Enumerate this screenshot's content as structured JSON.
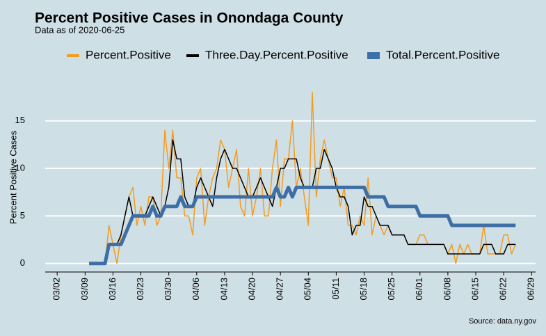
{
  "chart_data": {
    "type": "line",
    "title": "Percent Positive Cases in Onondaga County",
    "subtitle": "Data as of 2020-06-25",
    "y_label": "Percent Positive Cases",
    "source": "Source: data.ny.gov",
    "legend": "top",
    "grid": true,
    "xlim": [
      "02/28",
      "06/30"
    ],
    "xticks": [
      "03/02",
      "03/09",
      "03/16",
      "03/23",
      "03/30",
      "04/06",
      "04/13",
      "04/20",
      "04/27",
      "05/04",
      "05/11",
      "05/18",
      "05/25",
      "06/01",
      "06/08",
      "06/15",
      "06/22",
      "06/29"
    ],
    "ylim": [
      -0.9,
      18.2
    ],
    "yticks": [
      0,
      5,
      10,
      15
    ],
    "x": [
      "03/10",
      "03/11",
      "03/12",
      "03/13",
      "03/14",
      "03/15",
      "03/16",
      "03/17",
      "03/18",
      "03/19",
      "03/20",
      "03/21",
      "03/22",
      "03/23",
      "03/24",
      "03/25",
      "03/26",
      "03/27",
      "03/28",
      "03/29",
      "03/30",
      "03/31",
      "04/01",
      "04/02",
      "04/03",
      "04/04",
      "04/05",
      "04/06",
      "04/07",
      "04/08",
      "04/09",
      "04/10",
      "04/11",
      "04/12",
      "04/13",
      "04/14",
      "04/15",
      "04/16",
      "04/17",
      "04/18",
      "04/19",
      "04/20",
      "04/21",
      "04/22",
      "04/23",
      "04/24",
      "04/25",
      "04/26",
      "04/27",
      "04/28",
      "04/29",
      "04/30",
      "05/01",
      "05/02",
      "05/03",
      "05/04",
      "05/05",
      "05/06",
      "05/07",
      "05/08",
      "05/09",
      "05/10",
      "05/11",
      "05/12",
      "05/13",
      "05/14",
      "05/15",
      "05/16",
      "05/17",
      "05/18",
      "05/19",
      "05/20",
      "05/21",
      "05/22",
      "05/23",
      "05/24",
      "05/25",
      "05/26",
      "05/27",
      "05/28",
      "05/29",
      "05/30",
      "05/31",
      "06/01",
      "06/02",
      "06/03",
      "06/04",
      "06/05",
      "06/06",
      "06/07",
      "06/08",
      "06/09",
      "06/10",
      "06/11",
      "06/12",
      "06/13",
      "06/14",
      "06/15",
      "06/16",
      "06/17",
      "06/18",
      "06/19",
      "06/20",
      "06/21",
      "06/22",
      "06/23",
      "06/24",
      "06/25"
    ],
    "series": [
      {
        "name": "Percent.Positive",
        "color": "#f39c1f",
        "width": 1.5,
        "values": [
          null,
          null,
          null,
          null,
          0,
          4,
          2,
          0,
          3,
          5,
          7,
          8,
          4,
          6,
          4,
          7,
          7,
          4,
          5,
          14,
          10,
          14,
          9,
          9,
          5,
          5,
          3,
          9,
          10,
          4,
          7,
          9,
          10,
          13,
          12,
          8,
          10,
          12,
          6,
          5,
          10,
          5,
          7,
          10,
          5,
          5,
          10,
          13,
          6,
          11,
          11,
          15,
          8,
          10,
          7,
          4,
          18,
          7,
          11,
          13,
          11,
          9,
          9,
          6,
          8,
          4,
          4,
          3,
          5,
          4,
          9,
          3,
          5,
          4,
          3,
          4,
          3,
          3,
          3,
          3,
          2,
          2,
          2,
          3,
          3,
          2,
          2,
          2,
          2,
          2,
          1,
          2,
          0,
          2,
          1,
          2,
          1,
          1,
          1,
          4,
          1,
          1,
          1,
          1,
          3,
          3,
          1,
          2
        ]
      },
      {
        "name": "Three.Day.Percent.Positive",
        "color": "#000000",
        "width": 1.5,
        "values": [
          null,
          null,
          null,
          null,
          null,
          2,
          2,
          2,
          3,
          5,
          7,
          5,
          5,
          5,
          5,
          6,
          7,
          6,
          5,
          6,
          8,
          13,
          11,
          11,
          7,
          6,
          6,
          8,
          9,
          8,
          7,
          6,
          9,
          11,
          12,
          11,
          10,
          10,
          9,
          8,
          7,
          7,
          8,
          9,
          8,
          7,
          6,
          8,
          10,
          10,
          11,
          11,
          11,
          9,
          8,
          8,
          8,
          10,
          10,
          12,
          11,
          10,
          8,
          7,
          7,
          6,
          3,
          4,
          4,
          7,
          6,
          6,
          5,
          4,
          4,
          4,
          3,
          3,
          3,
          3,
          2,
          2,
          2,
          2,
          2,
          2,
          2,
          2,
          2,
          2,
          1,
          1,
          1,
          1,
          1,
          1,
          1,
          1,
          1,
          2,
          2,
          2,
          1,
          1,
          1,
          2,
          2,
          2
        ]
      },
      {
        "name": "Total.Percent.Positive",
        "color": "#3e6ea6",
        "width": 5,
        "values": [
          0,
          0,
          0,
          0,
          0,
          2,
          2,
          2,
          2,
          3,
          4,
          5,
          5,
          5,
          5,
          5,
          6,
          5,
          5,
          6,
          6,
          6,
          6,
          7,
          6,
          6,
          6,
          7,
          7,
          7,
          7,
          7,
          7,
          7,
          7,
          7,
          7,
          7,
          7,
          7,
          7,
          7,
          7,
          7,
          7,
          7,
          7,
          8,
          7,
          7,
          8,
          7,
          8,
          8,
          8,
          8,
          8,
          8,
          8,
          8,
          8,
          8,
          8,
          8,
          8,
          8,
          8,
          8,
          8,
          8,
          7,
          7,
          7,
          7,
          7,
          6,
          6,
          6,
          6,
          6,
          6,
          6,
          6,
          5,
          5,
          5,
          5,
          5,
          5,
          5,
          5,
          4,
          4,
          4,
          4,
          4,
          4,
          4,
          4,
          4,
          4,
          4,
          4,
          4,
          4,
          4,
          4,
          4
        ]
      }
    ]
  }
}
